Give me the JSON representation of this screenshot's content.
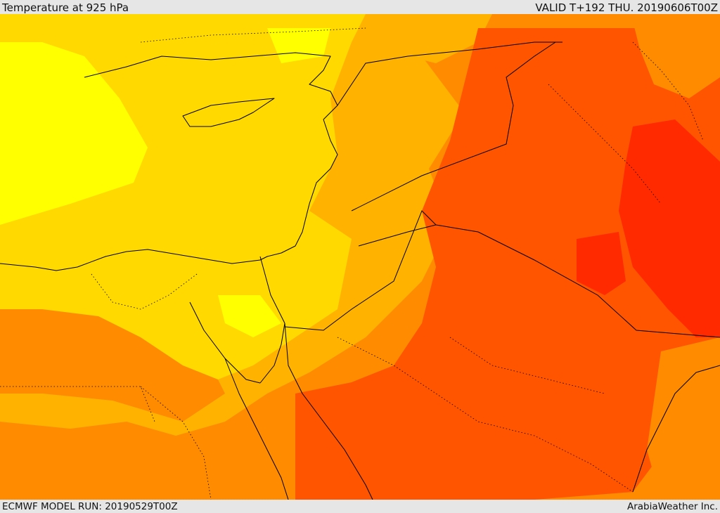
{
  "header": {
    "title": "Temperature at 925 hPa",
    "valid": "VALID T+192 THU. 20190606T00Z"
  },
  "footer": {
    "model_run": "ECMWF MODEL RUN: 20190529T00Z",
    "credit": "ArabiaWeather Inc."
  },
  "map": {
    "field": "temperature-925hPa",
    "colors": {
      "coolest": "#ffff00",
      "cool": "#ffd900",
      "mild": "#ffb300",
      "warm": "#ff8c00",
      "hot": "#ff5500",
      "hottest": "#ff2a00"
    }
  }
}
